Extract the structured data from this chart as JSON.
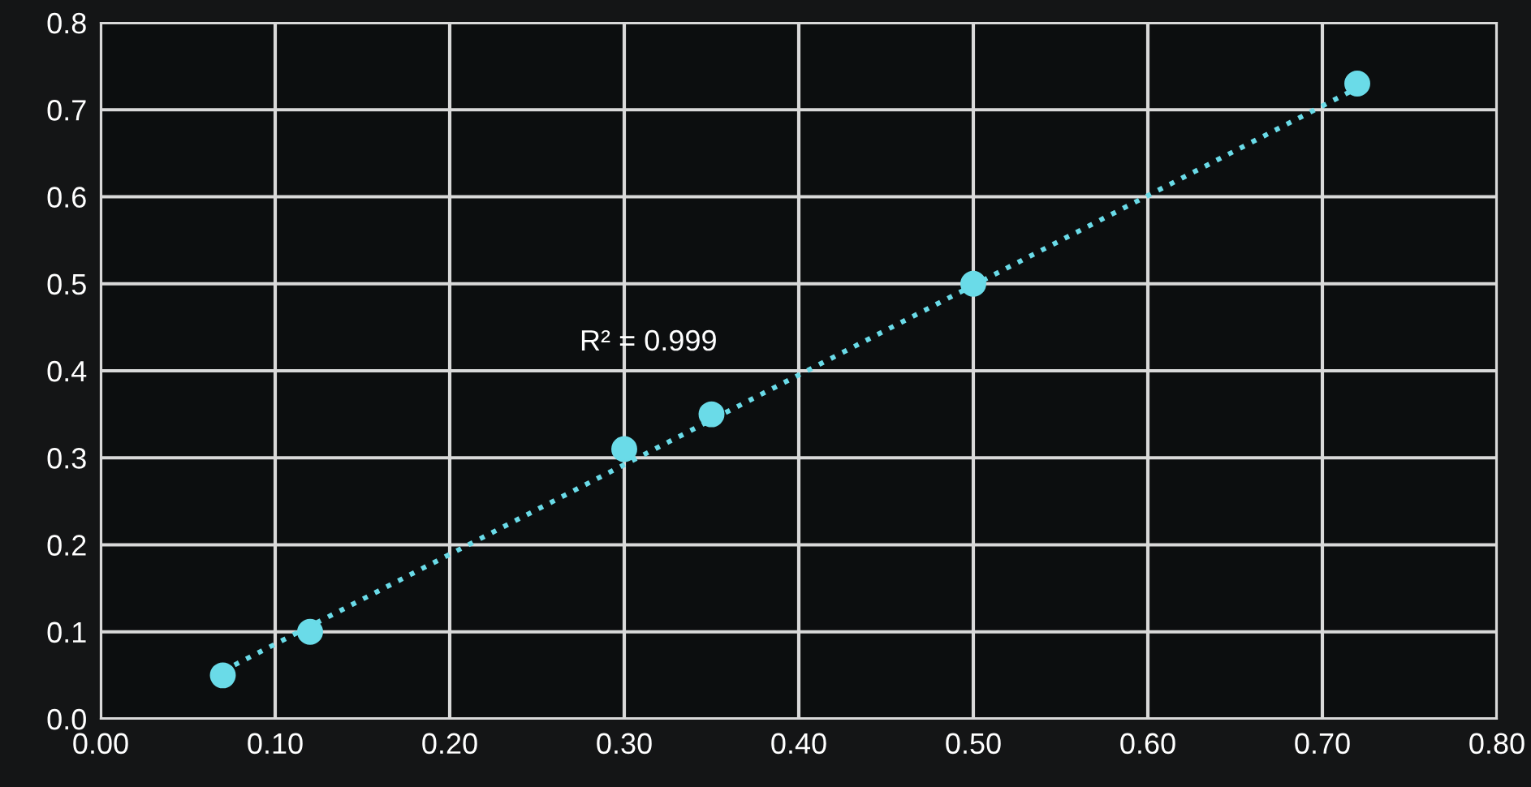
{
  "chart_data": {
    "type": "scatter",
    "x": [
      0.07,
      0.12,
      0.3,
      0.35,
      0.5,
      0.72
    ],
    "series": [
      {
        "color": "#6adbe8",
        "values": [
          0.05,
          0.1,
          0.31,
          0.35,
          0.5,
          0.73
        ],
        "marker": "circle"
      },
      {
        "type": "line",
        "color": "#6adbe8",
        "x": [
          0.07,
          0.72
        ],
        "values": [
          0.055,
          0.725
        ],
        "line_style": "dotted"
      }
    ],
    "xlim": [
      0,
      0.8
    ],
    "ylim": [
      0,
      0.8
    ],
    "xticks": [
      {
        "value": 0,
        "label": "0.00"
      },
      {
        "value": 0.1,
        "label": "0.10"
      },
      {
        "value": 0.2,
        "label": "0.20"
      },
      {
        "value": 0.3,
        "label": "0.30"
      },
      {
        "value": 0.4,
        "label": "0.40"
      },
      {
        "value": 0.5,
        "label": "0.50"
      },
      {
        "value": 0.6,
        "label": "0.60"
      },
      {
        "value": 0.7,
        "label": "0.70"
      },
      {
        "value": 0.8,
        "label": "0.80"
      }
    ],
    "yticks": [
      {
        "value": 0,
        "label": "0.0"
      },
      0.1,
      0.2,
      0.3,
      0.4,
      0.5,
      0.6,
      0.7,
      0.8
    ],
    "grid": true,
    "annotations": [
      "R² = 0.999"
    ]
  }
}
